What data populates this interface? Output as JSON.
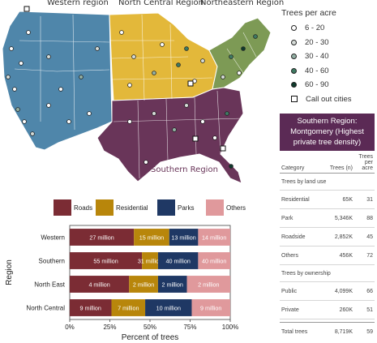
{
  "map": {
    "regions": [
      {
        "label": "Western region",
        "color": "#4f86aa"
      },
      {
        "label": "North Central Region",
        "color": "#e3b83a"
      },
      {
        "label": "Northeastern Region",
        "color": "#7d9a55"
      },
      {
        "label": "Southern Region",
        "color": "#693559"
      }
    ]
  },
  "legend": {
    "title": "Trees per acre",
    "items": [
      {
        "label": "6 - 20",
        "fill": "#ffffff"
      },
      {
        "label": "20 - 30",
        "fill": "#d6dcd8"
      },
      {
        "label": "30 - 40",
        "fill": "#93b0a4"
      },
      {
        "label": "40 - 60",
        "fill": "#3e7b63"
      },
      {
        "label": "60 - 90",
        "fill": "#0e3a2c"
      }
    ],
    "callout_label": "Call out cities"
  },
  "callout": {
    "line1": "Southern Region:",
    "line2": "Montgomery (Highest",
    "line3": "private tree density)"
  },
  "table": {
    "headers": {
      "category": "Category",
      "trees": "Trees (n)",
      "per_acre_1": "Trees",
      "per_acre_2": "per acre"
    },
    "section_land_use": "Trees by land use",
    "land_use": [
      {
        "category": "Residential",
        "trees": "65K",
        "per_acre": "31"
      },
      {
        "category": "Park",
        "trees": "5,346K",
        "per_acre": "88"
      },
      {
        "category": "Roadside",
        "trees": "2,852K",
        "per_acre": "45"
      },
      {
        "category": "Others",
        "trees": "456K",
        "per_acre": "72"
      }
    ],
    "section_ownership": "Trees by ownership",
    "ownership": [
      {
        "category": "Public",
        "trees": "4,099K",
        "per_acre": "66"
      },
      {
        "category": "Private",
        "trees": "260K",
        "per_acre": "51"
      }
    ],
    "total": {
      "category": "Total trees",
      "trees": "8,719K",
      "per_acre": "59"
    }
  },
  "chart_data": {
    "type": "bar",
    "orientation": "horizontal",
    "stacked": "percent",
    "categories": [
      "Western",
      "Southern",
      "North East",
      "North Central"
    ],
    "series": [
      {
        "name": "Roads",
        "color": "#7b2c34",
        "values": [
          40,
          45,
          37,
          26
        ],
        "labels": [
          "27 million",
          "55 million",
          "4 million",
          "9 million"
        ]
      },
      {
        "name": "Residential",
        "color": "#b8860b",
        "values": [
          22,
          10,
          18,
          21
        ],
        "labels": [
          "15 million",
          "31 million",
          "2 million",
          "7 million"
        ]
      },
      {
        "name": "Parks",
        "color": "#1f3864",
        "values": [
          18,
          25,
          18,
          29
        ],
        "labels": [
          "13 million",
          "40 million",
          "2 million",
          "10 million"
        ]
      },
      {
        "name": "Others",
        "color": "#e0999c",
        "values": [
          20,
          20,
          27,
          24
        ],
        "labels": [
          "14 million",
          "40 million",
          "2 million",
          "9 million"
        ]
      }
    ],
    "xlabel": "Percent of trees",
    "ylabel": "Region",
    "xticks": [
      "0%",
      "25%",
      "50%",
      "75%",
      "100%"
    ],
    "xlim": [
      0,
      100
    ]
  }
}
